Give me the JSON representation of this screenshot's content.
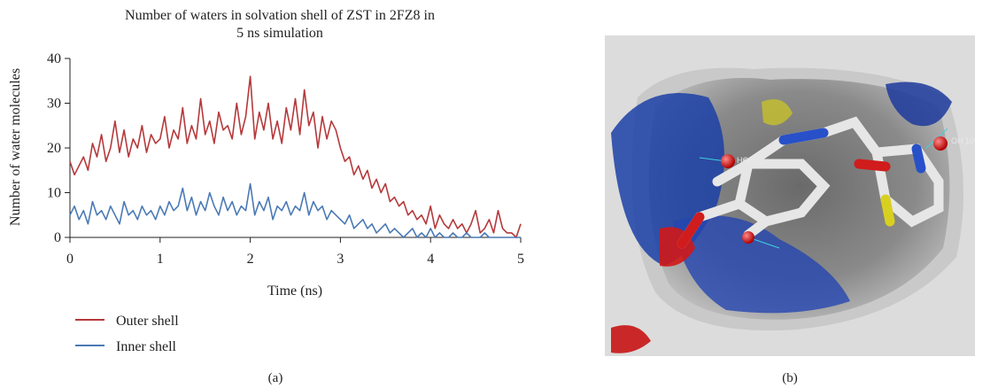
{
  "panel_a": {
    "caption": "(a)"
  },
  "panel_b": {
    "caption": "(b)",
    "labels": [
      "HOH 1",
      "OH 1082.A"
    ]
  },
  "chart_data": {
    "type": "line",
    "title": [
      "Number of waters in solvation shell of  ZST in 2FZ8 in",
      "5 ns simulation"
    ],
    "xlabel": "Time (ns)",
    "ylabel": "Number of water molecules",
    "xlim": [
      0,
      5
    ],
    "ylim": [
      0,
      40
    ],
    "xticks": [
      0,
      1,
      2,
      3,
      4,
      5
    ],
    "yticks": [
      0,
      10,
      20,
      30,
      40
    ],
    "grid": false,
    "legend": "bottom-left, below plot",
    "series": [
      {
        "name": "Outer shell",
        "color": "#b5393b",
        "x": [
          0,
          0.05,
          0.1,
          0.15,
          0.2,
          0.25,
          0.3,
          0.35,
          0.4,
          0.45,
          0.5,
          0.55,
          0.6,
          0.65,
          0.7,
          0.75,
          0.8,
          0.85,
          0.9,
          0.95,
          1.0,
          1.05,
          1.1,
          1.15,
          1.2,
          1.25,
          1.3,
          1.35,
          1.4,
          1.45,
          1.5,
          1.55,
          1.6,
          1.65,
          1.7,
          1.75,
          1.8,
          1.85,
          1.9,
          1.95,
          2.0,
          2.05,
          2.1,
          2.15,
          2.2,
          2.25,
          2.3,
          2.35,
          2.4,
          2.45,
          2.5,
          2.55,
          2.6,
          2.65,
          2.7,
          2.75,
          2.8,
          2.85,
          2.9,
          2.95,
          3.0,
          3.05,
          3.1,
          3.15,
          3.2,
          3.25,
          3.3,
          3.35,
          3.4,
          3.45,
          3.5,
          3.55,
          3.6,
          3.65,
          3.7,
          3.75,
          3.8,
          3.85,
          3.9,
          3.95,
          4.0,
          4.05,
          4.1,
          4.15,
          4.2,
          4.25,
          4.3,
          4.35,
          4.4,
          4.45,
          4.5,
          4.55,
          4.6,
          4.65,
          4.7,
          4.75,
          4.8,
          4.85,
          4.9,
          4.95,
          5.0
        ],
        "values": [
          17,
          14,
          16,
          18,
          15,
          21,
          18,
          23,
          17,
          20,
          26,
          19,
          24,
          18,
          22,
          20,
          25,
          19,
          23,
          21,
          22,
          27,
          20,
          24,
          22,
          29,
          21,
          25,
          22,
          31,
          23,
          26,
          21,
          28,
          24,
          25,
          22,
          30,
          23,
          27,
          36,
          22,
          28,
          24,
          30,
          22,
          26,
          21,
          29,
          24,
          31,
          23,
          33,
          25,
          28,
          20,
          27,
          22,
          26,
          24,
          20,
          17,
          18,
          14,
          16,
          13,
          15,
          11,
          13,
          10,
          12,
          8,
          9,
          7,
          8,
          5,
          6,
          4,
          5,
          3,
          7,
          2,
          5,
          3,
          2,
          4,
          2,
          3,
          1,
          3,
          6,
          1,
          2,
          4,
          1,
          6,
          2,
          1,
          1,
          0,
          3
        ]
      },
      {
        "name": "Inner shell",
        "color": "#4a7ab5",
        "x": [
          0,
          0.05,
          0.1,
          0.15,
          0.2,
          0.25,
          0.3,
          0.35,
          0.4,
          0.45,
          0.5,
          0.55,
          0.6,
          0.65,
          0.7,
          0.75,
          0.8,
          0.85,
          0.9,
          0.95,
          1.0,
          1.05,
          1.1,
          1.15,
          1.2,
          1.25,
          1.3,
          1.35,
          1.4,
          1.45,
          1.5,
          1.55,
          1.6,
          1.65,
          1.7,
          1.75,
          1.8,
          1.85,
          1.9,
          1.95,
          2.0,
          2.05,
          2.1,
          2.15,
          2.2,
          2.25,
          2.3,
          2.35,
          2.4,
          2.45,
          2.5,
          2.55,
          2.6,
          2.65,
          2.7,
          2.75,
          2.8,
          2.85,
          2.9,
          2.95,
          3.0,
          3.05,
          3.1,
          3.15,
          3.2,
          3.25,
          3.3,
          3.35,
          3.4,
          3.45,
          3.5,
          3.55,
          3.6,
          3.65,
          3.7,
          3.75,
          3.8,
          3.85,
          3.9,
          3.95,
          4.0,
          4.05,
          4.1,
          4.15,
          4.2,
          4.25,
          4.3,
          4.35,
          4.4,
          4.45,
          4.5,
          4.55,
          4.6,
          4.65,
          4.7,
          4.75,
          4.8,
          4.85,
          4.9,
          4.95,
          5.0
        ],
        "values": [
          5,
          7,
          4,
          6,
          3,
          8,
          5,
          6,
          4,
          7,
          5,
          3,
          8,
          5,
          6,
          4,
          7,
          5,
          6,
          4,
          7,
          5,
          8,
          6,
          7,
          11,
          6,
          9,
          5,
          8,
          6,
          10,
          7,
          5,
          9,
          6,
          8,
          5,
          7,
          6,
          12,
          5,
          8,
          6,
          9,
          4,
          7,
          6,
          8,
          5,
          7,
          6,
          10,
          5,
          8,
          6,
          7,
          4,
          6,
          5,
          4,
          3,
          5,
          2,
          3,
          4,
          2,
          3,
          1,
          2,
          3,
          1,
          2,
          1,
          0,
          1,
          2,
          0,
          1,
          0,
          2,
          0,
          1,
          0,
          0,
          1,
          0,
          0,
          1,
          0,
          0,
          0,
          1,
          0,
          0,
          0,
          0,
          0,
          0,
          0,
          0
        ]
      }
    ]
  }
}
